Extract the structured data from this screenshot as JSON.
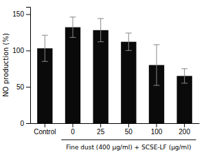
{
  "chart_data": {
    "type": "bar",
    "categories": [
      "Control",
      "0",
      "25",
      "50",
      "100",
      "200"
    ],
    "values": [
      103,
      132,
      128,
      112,
      80,
      65
    ],
    "errors": [
      18,
      14,
      16,
      12,
      28,
      10
    ],
    "color": "#0a0a0a",
    "ylabel": "NO production (%)",
    "xlabel": "Fine dust (400 μg/ml) + SCSE-LF (μg/ml)",
    "ylim": [
      0,
      160
    ],
    "yticks": [
      0,
      50,
      100,
      150
    ],
    "grid": false
  }
}
